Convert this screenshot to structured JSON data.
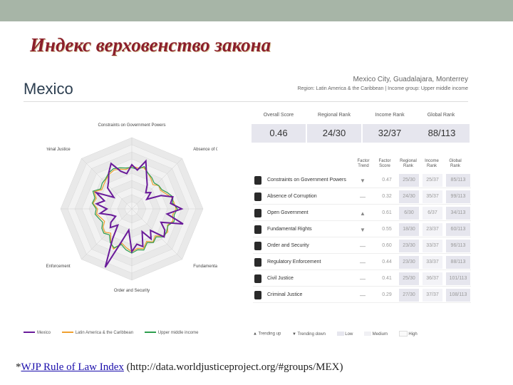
{
  "slide": {
    "title": "Индекс верховенство закона",
    "caption_prefix": "*",
    "caption_link": "WJP Rule of Law Index",
    "caption_suffix": " (http://data.worldjusticeproject.org/#groups/MEX)"
  },
  "panel": {
    "country": "Mexico",
    "cities": "Mexico City, Guadalajara, Monterrey",
    "region": "Region: Latin America & the Caribbean | Income group: Upper middle income"
  },
  "summary": {
    "headers": [
      "Overall Score",
      "Regional Rank",
      "Income Rank",
      "Global Rank"
    ],
    "values": [
      "0.46",
      "24/30",
      "32/37",
      "88/113"
    ]
  },
  "factor_table": {
    "headers": [
      "Factor Trend",
      "Factor Score",
      "Regional Rank",
      "Income Rank",
      "Global Rank"
    ],
    "rows": [
      {
        "name": "Constraints on Government Powers",
        "trend": "▼",
        "score": "0.47",
        "regional": "25/30",
        "income": "25/37",
        "global": "85/113"
      },
      {
        "name": "Absence of Corruption",
        "trend": "—",
        "score": "0.32",
        "regional": "24/30",
        "income": "35/37",
        "global": "99/113"
      },
      {
        "name": "Open Government",
        "trend": "▲",
        "score": "0.61",
        "regional": "6/30",
        "income": "6/37",
        "global": "34/113"
      },
      {
        "name": "Fundamental Rights",
        "trend": "▼",
        "score": "0.55",
        "regional": "18/30",
        "income": "23/37",
        "global": "60/113"
      },
      {
        "name": "Order and Security",
        "trend": "—",
        "score": "0.60",
        "regional": "23/30",
        "income": "33/37",
        "global": "96/113"
      },
      {
        "name": "Regulatory Enforcement",
        "trend": "—",
        "score": "0.44",
        "regional": "23/30",
        "income": "33/37",
        "global": "88/113"
      },
      {
        "name": "Civil Justice",
        "trend": "—",
        "score": "0.41",
        "regional": "25/30",
        "income": "36/37",
        "global": "101/113"
      },
      {
        "name": "Criminal Justice",
        "trend": "—",
        "score": "0.29",
        "regional": "27/30",
        "income": "37/37",
        "global": "108/113"
      }
    ]
  },
  "radar": {
    "axis_labels": [
      "Constraints on Government Powers",
      "Absence of Corruption",
      "Open Government",
      "Fundamental Rights",
      "Order and Security",
      "Regulatory Enforcement",
      "Civil Justice",
      "Criminal Justice"
    ],
    "legend": [
      "Mexico",
      "Latin America & the Caribbean",
      "Upper middle income"
    ],
    "colors": {
      "mexico": "#6a1b9a",
      "region": "#f0a030",
      "income": "#2e9e4e"
    }
  },
  "legend_bottom": [
    "Trending up",
    "Trending down",
    "Low",
    "Medium",
    "High"
  ]
}
